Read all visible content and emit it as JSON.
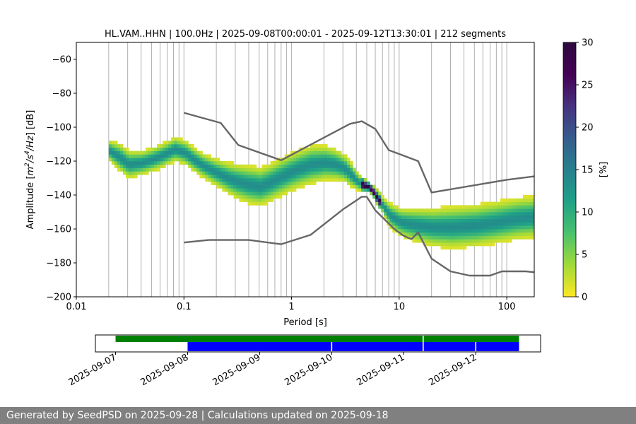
{
  "chart_data": {
    "type": "heatmap",
    "title": "HL.VAM..HHN | 100.0Hz | 2025-09-08T00:00:01 - 2025-09-12T13:30:01 | 212 segments",
    "xlabel": "Period [s]",
    "ylabel": "Amplitude [m²/s⁴/Hz] [dB]",
    "xscale": "log",
    "xlim": [
      0.01,
      180
    ],
    "ylim": [
      -200,
      -50
    ],
    "x_ticks": [
      0.01,
      0.1,
      1,
      10,
      100
    ],
    "x_tick_labels": [
      "0.01",
      "0.1",
      "1",
      "10",
      "100"
    ],
    "y_ticks": [
      -200,
      -180,
      -160,
      -140,
      -120,
      -100,
      -80,
      -60
    ],
    "y_tick_labels": [
      "−200",
      "−180",
      "−160",
      "−140",
      "−120",
      "−100",
      "−80",
      "−60"
    ],
    "grid": "vertical",
    "grid_periods": [
      0.02,
      0.03,
      0.04,
      0.05,
      0.06,
      0.07,
      0.08,
      0.09,
      0.1,
      0.2,
      0.3,
      0.4,
      0.5,
      0.6,
      0.7,
      0.8,
      0.9,
      1,
      2,
      3,
      4,
      5,
      6,
      7,
      8,
      9,
      10,
      20,
      30,
      40,
      50,
      60,
      70,
      80,
      90,
      100
    ],
    "colorbar": {
      "label": "[%]",
      "range": [
        0,
        30
      ],
      "ticks": [
        0,
        5,
        10,
        15,
        20,
        25,
        30
      ],
      "colormap": "viridis_r"
    },
    "psd_band": {
      "description_periods": [
        0.02,
        0.025,
        0.03,
        0.04,
        0.05,
        0.06,
        0.07,
        0.08,
        0.1,
        0.12,
        0.15,
        0.2,
        0.25,
        0.3,
        0.4,
        0.5,
        0.6,
        0.8,
        1,
        1.2,
        1.5,
        2,
        2.5,
        3,
        3.5,
        4,
        4.5,
        5,
        5.5,
        6,
        7,
        8,
        10,
        12,
        15,
        20,
        30,
        50,
        80,
        120,
        180
      ],
      "center_db": [
        -114,
        -118,
        -122,
        -121,
        -119,
        -117,
        -115,
        -113,
        -115,
        -119,
        -123,
        -127,
        -130,
        -132,
        -134,
        -135,
        -133,
        -129,
        -126,
        -124,
        -122,
        -121,
        -122,
        -124,
        -128,
        -132,
        -134,
        -135,
        -137,
        -141,
        -147,
        -152,
        -156,
        -157,
        -158,
        -159,
        -159,
        -158,
        -156,
        -154,
        -153
      ],
      "half_width_db": [
        6,
        8,
        8,
        7,
        7,
        7,
        7,
        7,
        7,
        7,
        7,
        8,
        9,
        10,
        11,
        11,
        11,
        11,
        11,
        11,
        11,
        10,
        9,
        8,
        7,
        5,
        4,
        3,
        3,
        4,
        5,
        7,
        8,
        9,
        10,
        11,
        12,
        12,
        12,
        12,
        12
      ]
    },
    "series": [
      {
        "x": [
          0.1,
          0.22,
          0.32,
          0.8,
          3.5,
          4.5,
          6,
          8,
          15,
          20,
          100,
          180
        ],
        "y": [
          -91.5,
          -97.5,
          -110.5,
          -119.5,
          -98,
          -96.5,
          -101,
          -113.5,
          -120,
          -138.5,
          -131,
          -129
        ]
      },
      {
        "x": [
          0.1,
          0.17,
          0.4,
          0.8,
          1.5,
          3,
          4.5,
          5,
          6,
          9,
          11,
          13,
          15,
          20,
          30,
          45,
          70,
          90,
          150,
          180
        ],
        "y": [
          -168,
          -166.5,
          -166.5,
          -169,
          -163.5,
          -148.5,
          -141,
          -141,
          -149,
          -160,
          -164,
          -166,
          -162,
          -177.5,
          -185,
          -187.5,
          -187.5,
          -185,
          -185,
          -185.5
        ]
      }
    ],
    "timeline": {
      "tick_labels": [
        "2025-09-07",
        "2025-09-08",
        "2025-09-09",
        "2025-09-10",
        "2025-09-11",
        "2025-09-12"
      ],
      "tick_days": [
        0,
        1,
        2,
        3,
        4,
        5
      ],
      "xlim_days": [
        -0.28,
        5.9
      ],
      "green_span_days": [
        0,
        5.6
      ],
      "green_gaps_days": [
        4.27
      ],
      "blue_span_days": [
        1,
        5.6
      ],
      "blue_gaps_days": [
        3,
        4.27,
        5
      ]
    }
  },
  "footer": {
    "text": "Generated by SeedPSD on 2025-09-28 | Calculations updated on 2025-09-18"
  }
}
